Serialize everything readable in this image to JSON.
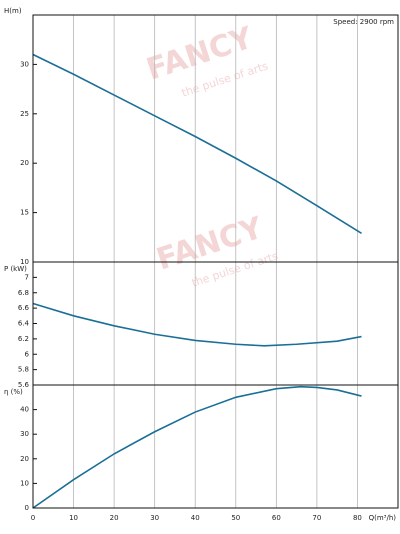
{
  "watermark": {
    "title": "FANCY",
    "subtitle": "the pulse of arts"
  },
  "chart_data": [
    {
      "type": "line",
      "ylabel": "H(m)",
      "annotation": "Speed: 2900 rpm",
      "color": "#1b6f96",
      "x": [
        0,
        10,
        20,
        30,
        40,
        50,
        60,
        70,
        81
      ],
      "values": [
        31,
        29,
        26.9,
        24.8,
        22.7,
        20.5,
        18.2,
        15.7,
        12.9
      ],
      "ylim": [
        10,
        35
      ],
      "yticks": [
        10,
        15,
        20,
        25,
        30
      ]
    },
    {
      "type": "line",
      "ylabel": "P (kW)",
      "color": "#1b6f96",
      "x": [
        0,
        10,
        20,
        30,
        40,
        50,
        57,
        65,
        75,
        81
      ],
      "values": [
        6.66,
        6.5,
        6.37,
        6.26,
        6.18,
        6.13,
        6.11,
        6.13,
        6.17,
        6.23
      ],
      "ylim": [
        5.6,
        7.2
      ],
      "yticks": [
        5.6,
        5.8,
        6,
        6.2,
        6.4,
        6.6,
        6.8,
        7
      ]
    },
    {
      "type": "line",
      "ylabel": "η (%)",
      "xlabel": "Q(m³/h)",
      "color": "#1b6f96",
      "x": [
        0,
        10,
        20,
        30,
        40,
        50,
        60,
        66,
        70,
        75,
        81
      ],
      "values": [
        0,
        11.5,
        22,
        31,
        39,
        45,
        48.5,
        49.3,
        49,
        48,
        45.5
      ],
      "xlim": [
        0,
        90
      ],
      "xticks": [
        0,
        10,
        20,
        30,
        40,
        50,
        60,
        70,
        80
      ],
      "ylim": [
        0,
        50
      ],
      "yticks": [
        0,
        10,
        20,
        30,
        40
      ]
    }
  ]
}
